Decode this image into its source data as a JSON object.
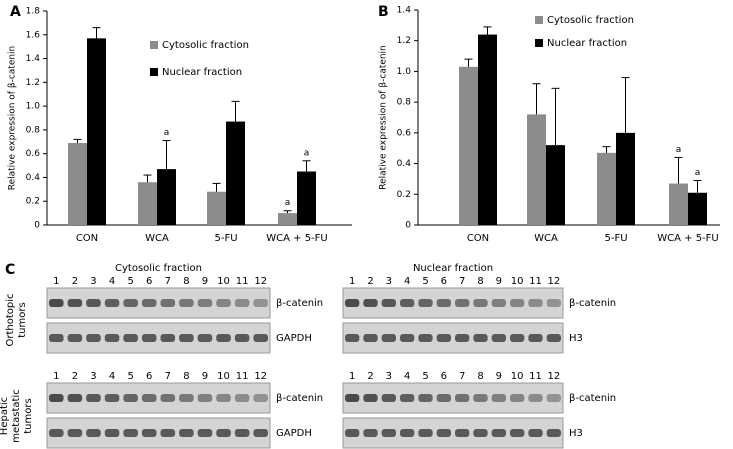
{
  "chart_data": [
    {
      "type": "bar",
      "panel": "A",
      "y_label": "Relative expression of β-catenin",
      "categories": [
        "CON",
        "WCA",
        "5-FU",
        "WCA + 5-FU"
      ],
      "series": [
        {
          "name": "Cytosolic fraction",
          "color": "#8c8c8c",
          "values": [
            0.69,
            0.36,
            0.28,
            0.1
          ],
          "errors": [
            0.03,
            0.06,
            0.07,
            0.02
          ],
          "annotations": [
            null,
            null,
            null,
            "a"
          ]
        },
        {
          "name": "Nuclear fraction",
          "color": "#000000",
          "values": [
            1.57,
            0.47,
            0.87,
            0.45
          ],
          "errors": [
            0.09,
            0.24,
            0.17,
            0.09
          ],
          "annotations": [
            null,
            "a",
            null,
            "a"
          ]
        }
      ],
      "ylim": [
        0,
        1.8
      ],
      "yticks": [
        0,
        0.2,
        0.4,
        0.6,
        0.8,
        {
          "value": 1,
          "label": "1.0"
        },
        1.2,
        1.4,
        1.6,
        1.8
      ],
      "grid": false,
      "legend": "upper right"
    },
    {
      "type": "bar",
      "panel": "B",
      "y_label": "Relative expression of β-catenin",
      "categories": [
        "CON",
        "WCA",
        "5-FU",
        "WCA + 5-FU"
      ],
      "series": [
        {
          "name": "Cytosolic fraction",
          "color": "#8c8c8c",
          "values": [
            1.03,
            0.72,
            0.47,
            0.27
          ],
          "errors": [
            0.05,
            0.2,
            0.04,
            0.17
          ],
          "annotations": [
            null,
            null,
            null,
            "a"
          ]
        },
        {
          "name": "Nuclear fraction",
          "color": "#000000",
          "values": [
            1.24,
            0.52,
            0.6,
            0.21
          ],
          "errors": [
            0.05,
            0.37,
            0.36,
            0.08
          ],
          "annotations": [
            null,
            null,
            null,
            "a"
          ]
        }
      ],
      "ylim": [
        0,
        1.4
      ],
      "yticks": [
        0,
        0.2,
        0.4,
        0.6,
        0.8,
        {
          "value": 1,
          "label": "1.0"
        },
        1.2,
        1.4
      ],
      "grid": false,
      "legend": "upper right"
    }
  ],
  "blots": {
    "panel": "C",
    "rows": [
      {
        "label": "Orthotopic tumors",
        "panels": [
          {
            "title": "Cytosolic fraction",
            "lanes": [
              1,
              2,
              3,
              4,
              5,
              6,
              7,
              8,
              9,
              10,
              11,
              12
            ],
            "bands": [
              "β-catenin",
              "GAPDH"
            ]
          },
          {
            "title": "Nuclear fraction",
            "lanes": [
              1,
              2,
              3,
              4,
              5,
              6,
              7,
              8,
              9,
              10,
              11,
              12
            ],
            "bands": [
              "β-catenin",
              "H3"
            ]
          }
        ]
      },
      {
        "label": "Hepatic metastatic tumors",
        "panels": [
          {
            "lanes": [
              1,
              2,
              3,
              4,
              5,
              6,
              7,
              8,
              9,
              10,
              11,
              12
            ],
            "bands": [
              "β-catenin",
              "GAPDH"
            ]
          },
          {
            "lanes": [
              1,
              2,
              3,
              4,
              5,
              6,
              7,
              8,
              9,
              10,
              11,
              12
            ],
            "bands": [
              "β-catenin",
              "H3"
            ]
          }
        ]
      }
    ]
  }
}
